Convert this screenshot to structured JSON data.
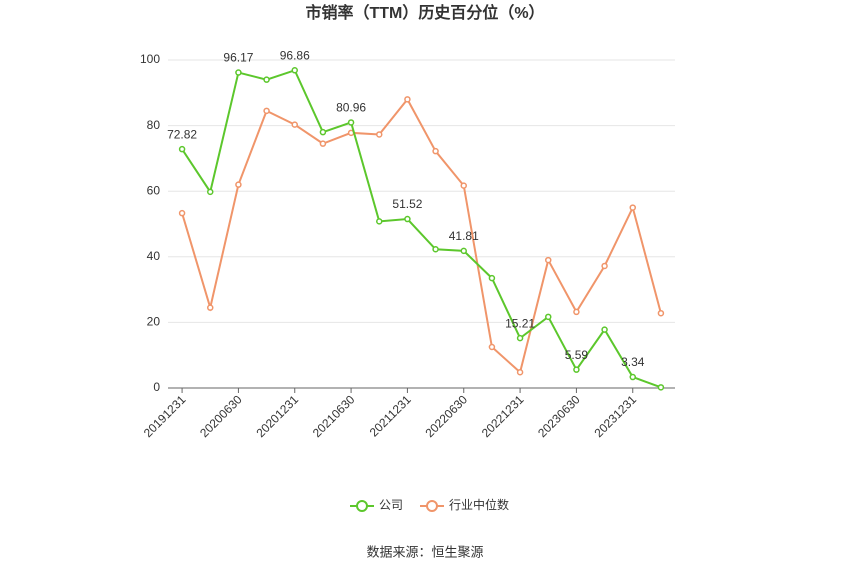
{
  "chart_data": {
    "type": "line",
    "title": "市销率（TTM）历史百分位（%）",
    "source": "数据来源：恒生聚源",
    "categories": [
      "20191231",
      null,
      "20200630",
      null,
      "20201231",
      null,
      "20210630",
      null,
      "20211231",
      null,
      "20220630",
      null,
      "20221231",
      null,
      "20230630",
      null,
      "20231231",
      null
    ],
    "series": [
      {
        "name": "公司",
        "color": "#5cc72c",
        "values": [
          72.82,
          59.8,
          96.17,
          94,
          96.86,
          78,
          80.96,
          50.8,
          51.52,
          42.3,
          41.81,
          33.5,
          15.21,
          21.7,
          5.59,
          17.8,
          3.34,
          0.2
        ],
        "value_labels": [
          "72.82",
          null,
          "96.17",
          null,
          "96.86",
          null,
          "80.96",
          null,
          "51.52",
          null,
          "41.81",
          null,
          "15.21",
          null,
          "5.59",
          null,
          "3.34",
          null
        ]
      },
      {
        "name": "行业中位数",
        "color": "#f0956a",
        "values": [
          53.3,
          24.5,
          62,
          84.5,
          80.3,
          74.5,
          77.8,
          77.3,
          88,
          72.2,
          61.7,
          12.5,
          4.8,
          39,
          23.2,
          37.2,
          55,
          22.8
        ]
      }
    ],
    "ylim": [
      0,
      100
    ],
    "yticks": [
      0,
      20,
      40,
      60,
      80,
      100
    ],
    "grid": true
  }
}
